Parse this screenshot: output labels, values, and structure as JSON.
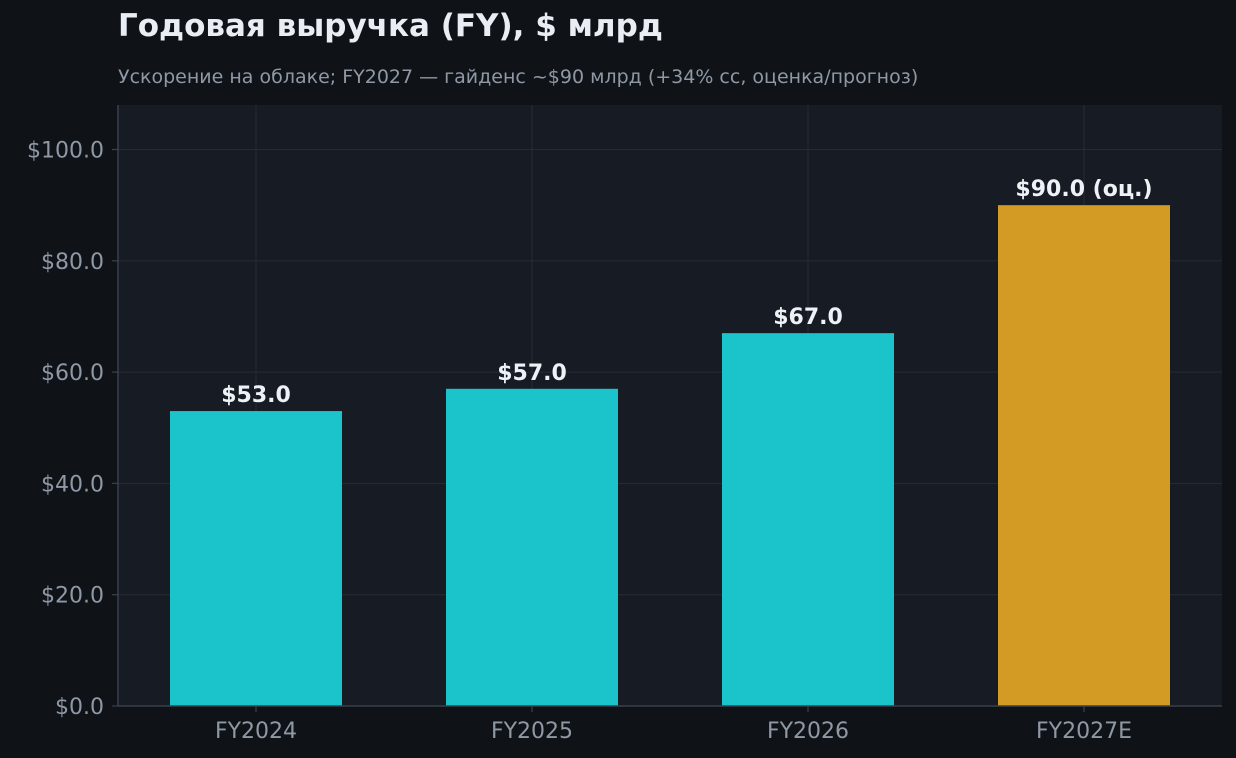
{
  "chart_data": {
    "type": "bar",
    "title": "Годовая выручка (FY), $ млрд",
    "subtitle": "Ускорение на облаке; FY2027 — гайденс ~$90 млрд (+34% сс, оценка/прогноз)",
    "categories": [
      "FY2024",
      "FY2025",
      "FY2026",
      "FY2027E"
    ],
    "values": [
      53.0,
      57.0,
      67.0,
      90.0
    ],
    "value_labels": [
      "$53.0",
      "$57.0",
      "$67.0",
      "$90.0 (оц.)"
    ],
    "xlabel": "",
    "ylabel": "",
    "ylim": [
      0,
      108
    ],
    "yticks": [
      0,
      20,
      40,
      60,
      80,
      100
    ],
    "ytick_labels": [
      "$0.0",
      "$20.0",
      "$40.0",
      "$60.0",
      "$80.0",
      "$100.0"
    ],
    "grid": true,
    "legend": "none",
    "colors": {
      "actual": "#1bc4cb",
      "estimate": "#d39a24",
      "page_background": "#0f1318",
      "plot_background": "#171b23",
      "grid": "#262c36",
      "axis": "#3a414c",
      "tick_text": "#8f99a5",
      "value_text": "#eef2f6"
    },
    "estimate_index": 3
  }
}
